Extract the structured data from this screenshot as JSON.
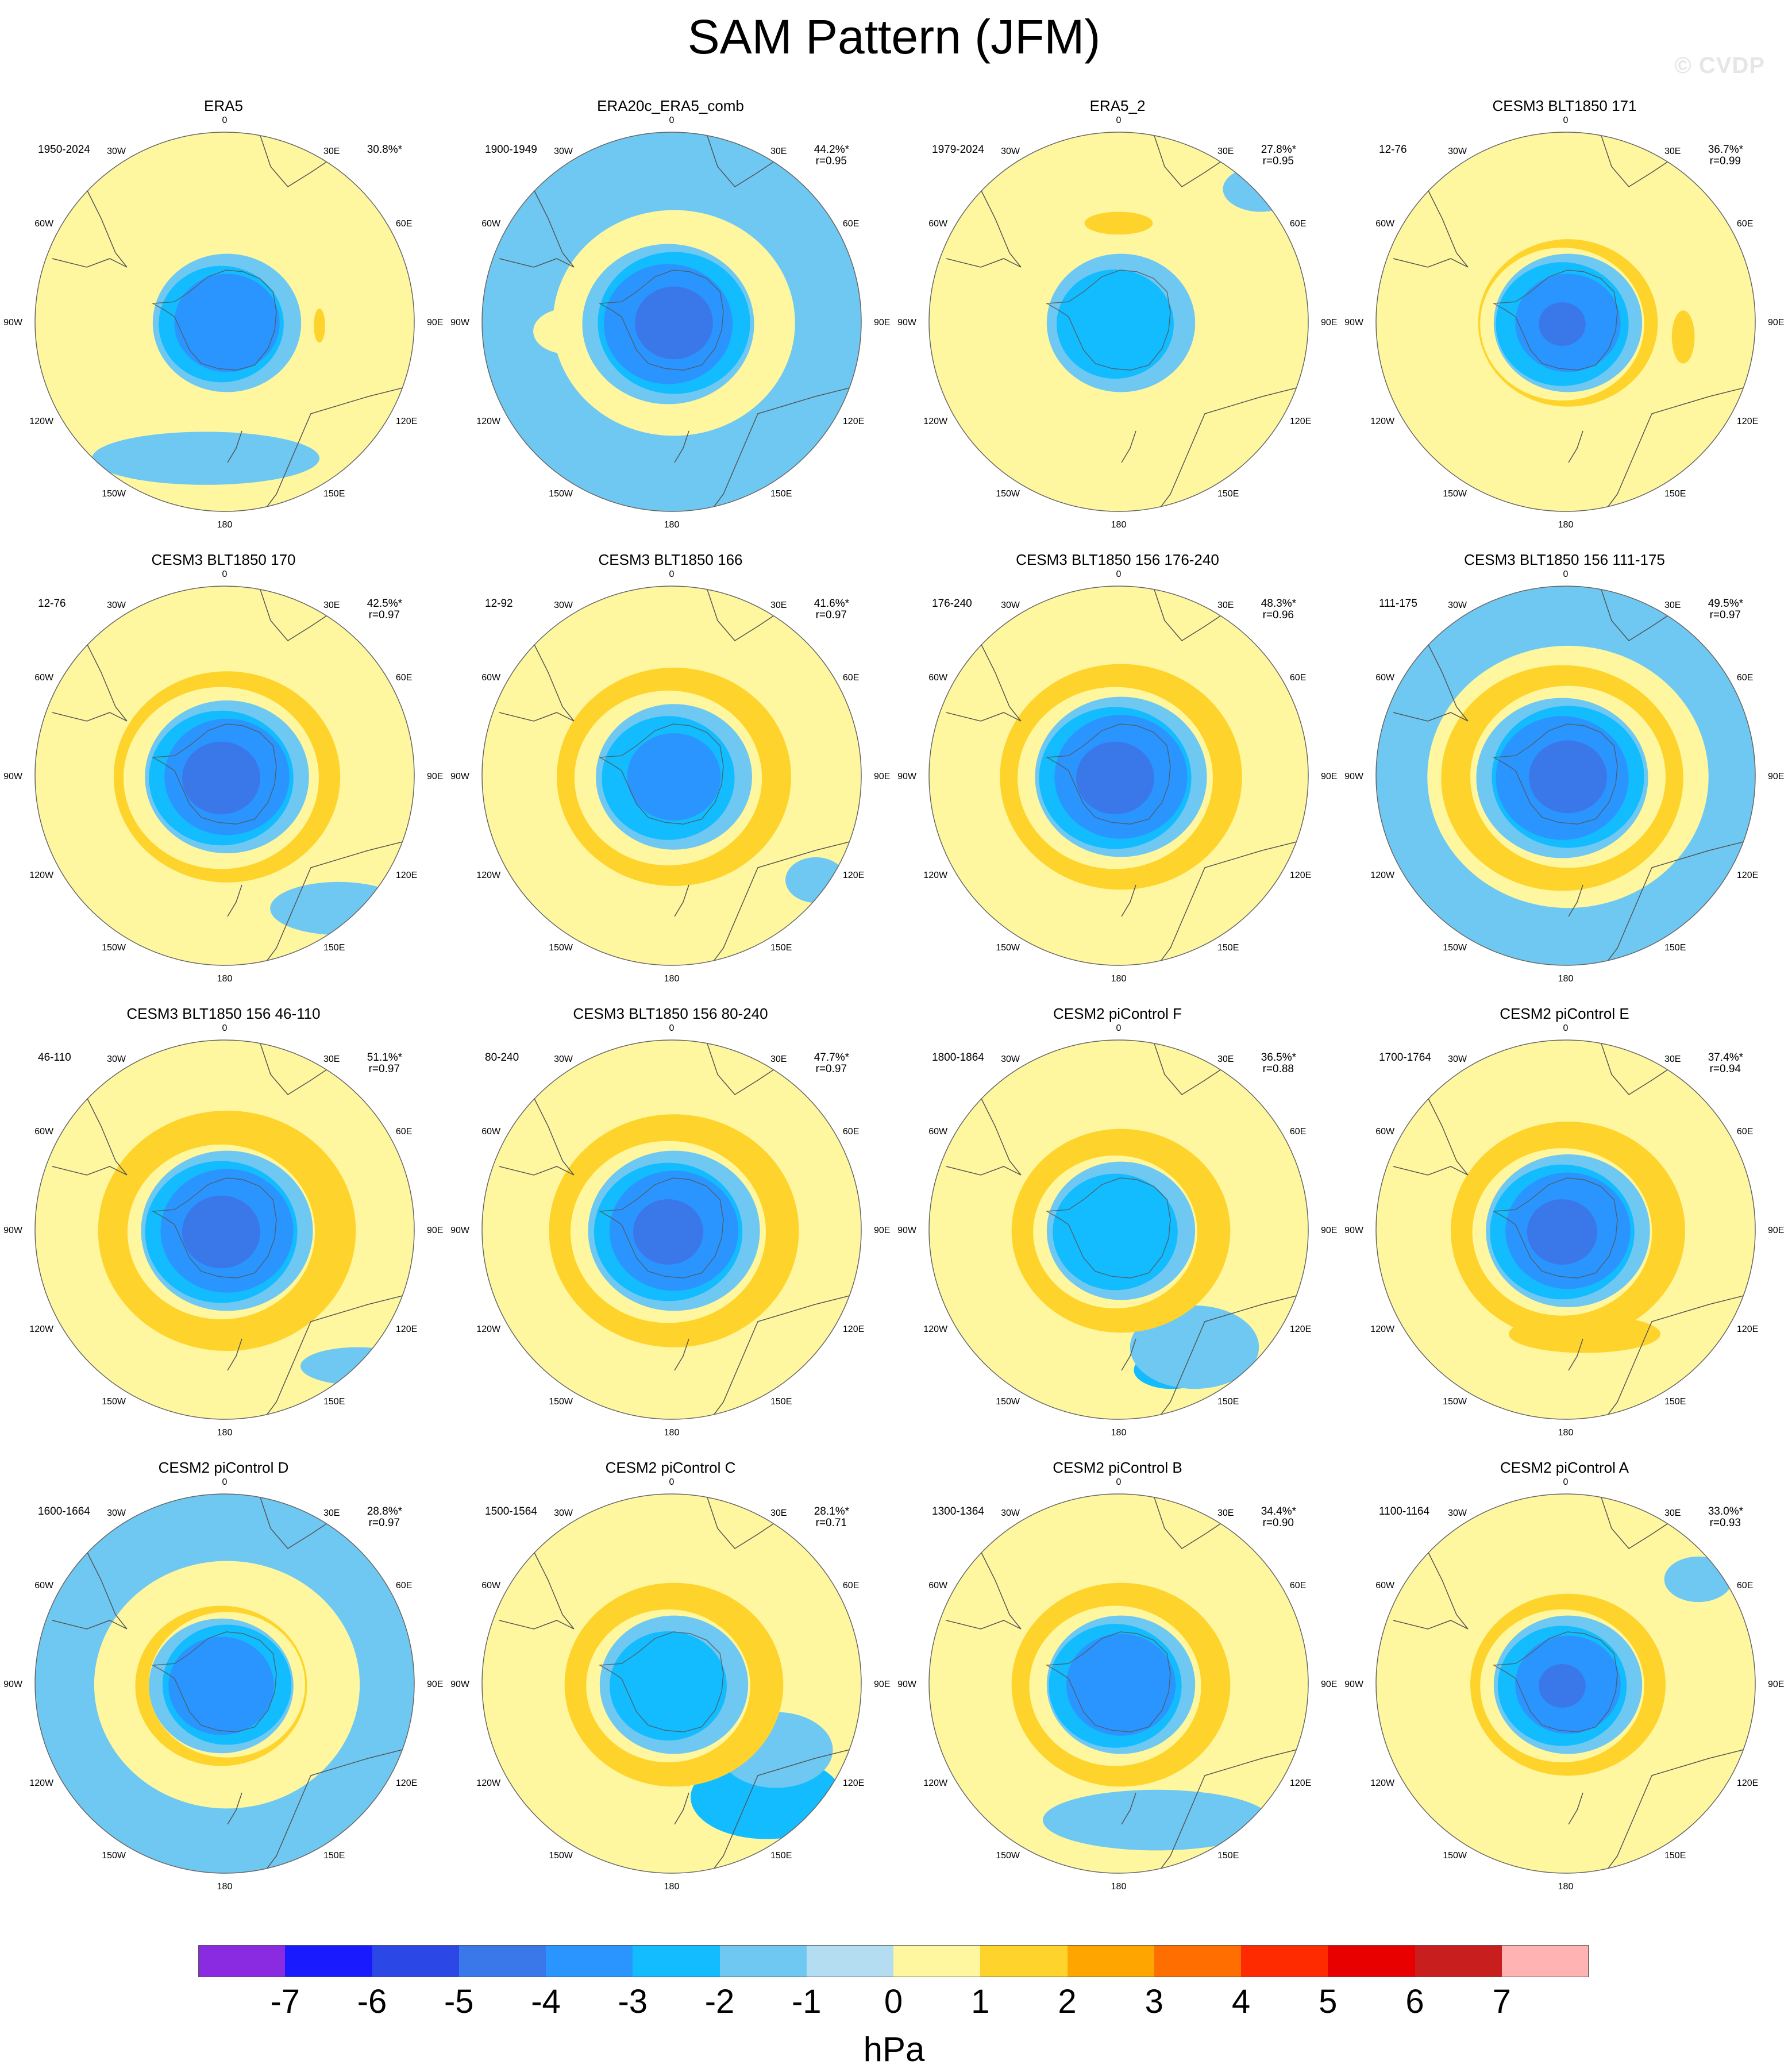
{
  "title": "SAM Pattern (JFM)",
  "watermark": "© CVDP",
  "units": "hPa",
  "colorbar": {
    "ticks": [
      "-7",
      "-6",
      "-5",
      "-4",
      "-3",
      "-2",
      "-1",
      "0",
      "1",
      "2",
      "3",
      "4",
      "5",
      "6",
      "7"
    ],
    "colors": [
      "#8a2be2",
      "#1a1aff",
      "#2b48e6",
      "#3a78ea",
      "#2b95ff",
      "#12bcff",
      "#6fc8f2",
      "#b4ddf2",
      "#fef7a0",
      "#fed42c",
      "#fea500",
      "#fe6e00",
      "#fe2a00",
      "#e80000",
      "#c81e1e",
      "#ffb3b3"
    ]
  },
  "lon_labels": [
    "0",
    "30E",
    "60E",
    "90E",
    "120E",
    "150E",
    "180",
    "150W",
    "120W",
    "90W",
    "60W",
    "30W"
  ],
  "panels": [
    {
      "title": "ERA5",
      "period": "1950-2024",
      "pct": "30.8%*",
      "r": ""
    },
    {
      "title": "ERA20c_ERA5_comb",
      "period": "1900-1949",
      "pct": "44.2%*",
      "r": "r=0.95"
    },
    {
      "title": "ERA5_2",
      "period": "1979-2024",
      "pct": "27.8%*",
      "r": "r=0.95"
    },
    {
      "title": "CESM3 BLT1850 171",
      "period": "12-76",
      "pct": "36.7%*",
      "r": "r=0.99"
    },
    {
      "title": "CESM3 BLT1850 170",
      "period": "12-76",
      "pct": "42.5%*",
      "r": "r=0.97"
    },
    {
      "title": "CESM3 BLT1850 166",
      "period": "12-92",
      "pct": "41.6%*",
      "r": "r=0.97"
    },
    {
      "title": "CESM3 BLT1850 156 176-240",
      "period": "176-240",
      "pct": "48.3%*",
      "r": "r=0.96"
    },
    {
      "title": "CESM3 BLT1850 156 111-175",
      "period": "111-175",
      "pct": "49.5%*",
      "r": "r=0.97"
    },
    {
      "title": "CESM3 BLT1850 156 46-110",
      "period": "46-110",
      "pct": "51.1%*",
      "r": "r=0.97"
    },
    {
      "title": "CESM3 BLT1850 156 80-240",
      "period": "80-240",
      "pct": "47.7%*",
      "r": "r=0.97"
    },
    {
      "title": "CESM2 piControl F",
      "period": "1800-1864",
      "pct": "36.5%*",
      "r": "r=0.88"
    },
    {
      "title": "CESM2 piControl E",
      "period": "1700-1764",
      "pct": "37.4%*",
      "r": "r=0.94"
    },
    {
      "title": "CESM2 piControl D",
      "period": "1600-1664",
      "pct": "28.8%*",
      "r": "r=0.97"
    },
    {
      "title": "CESM2 piControl C",
      "period": "1500-1564",
      "pct": "28.1%*",
      "r": "r=0.71"
    },
    {
      "title": "CESM2 piControl B",
      "period": "1300-1364",
      "pct": "34.4%*",
      "r": "r=0.90"
    },
    {
      "title": "CESM2 piControl A",
      "period": "1100-1164",
      "pct": "33.0%*",
      "r": "r=0.93"
    }
  ]
}
